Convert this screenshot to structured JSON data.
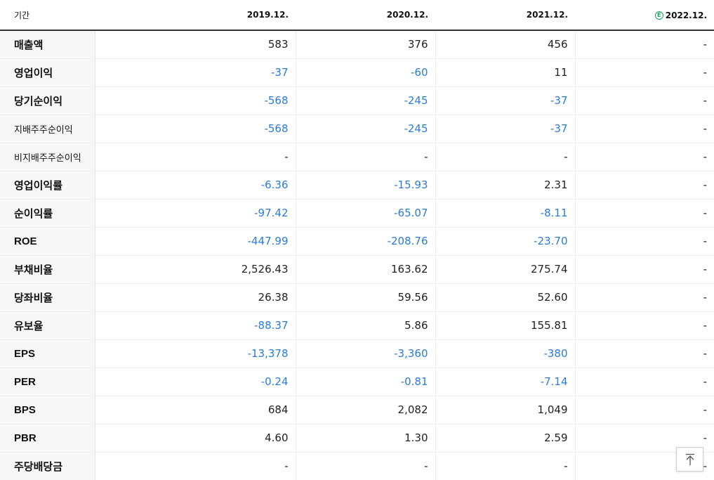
{
  "header": {
    "period_label": "기간",
    "periods": [
      "2019.12.",
      "2020.12.",
      "2021.12.",
      "2022.12."
    ],
    "estimate_mark": "E"
  },
  "rows": [
    {
      "label": "매출액",
      "values": [
        "583",
        "376",
        "456",
        "-"
      ]
    },
    {
      "label": "영업이익",
      "values": [
        "-37",
        "-60",
        "11",
        "-"
      ]
    },
    {
      "label": "당기순이익",
      "values": [
        "-568",
        "-245",
        "-37",
        "-"
      ]
    },
    {
      "label": "지배주주순이익",
      "values": [
        "-568",
        "-245",
        "-37",
        "-"
      ]
    },
    {
      "label": "비지배주주순이익",
      "values": [
        "-",
        "-",
        "-",
        "-"
      ]
    },
    {
      "label": "영업이익률",
      "values": [
        "-6.36",
        "-15.93",
        "2.31",
        "-"
      ]
    },
    {
      "label": "순이익률",
      "values": [
        "-97.42",
        "-65.07",
        "-8.11",
        "-"
      ]
    },
    {
      "label": "ROE",
      "values": [
        "-447.99",
        "-208.76",
        "-23.70",
        "-"
      ]
    },
    {
      "label": "부채비율",
      "values": [
        "2,526.43",
        "163.62",
        "275.74",
        "-"
      ]
    },
    {
      "label": "당좌비율",
      "values": [
        "26.38",
        "59.56",
        "52.60",
        "-"
      ]
    },
    {
      "label": "유보율",
      "values": [
        "-88.37",
        "5.86",
        "155.81",
        "-"
      ]
    },
    {
      "label": "EPS",
      "values": [
        "-13,378",
        "-3,360",
        "-380",
        "-"
      ]
    },
    {
      "label": "PER",
      "values": [
        "-0.24",
        "-0.81",
        "-7.14",
        "-"
      ]
    },
    {
      "label": "BPS",
      "values": [
        "684",
        "2,082",
        "1,049",
        "-"
      ]
    },
    {
      "label": "PBR",
      "values": [
        "4.60",
        "1.30",
        "2.59",
        "-"
      ]
    },
    {
      "label": "주당배당금",
      "values": [
        "-",
        "-",
        "-",
        "-"
      ]
    }
  ],
  "colors": {
    "negative": "#2b7bd9",
    "text": "#222222",
    "estimate": "#18a65d"
  },
  "scroll_top_icon": "arrow-up-to-top-icon"
}
